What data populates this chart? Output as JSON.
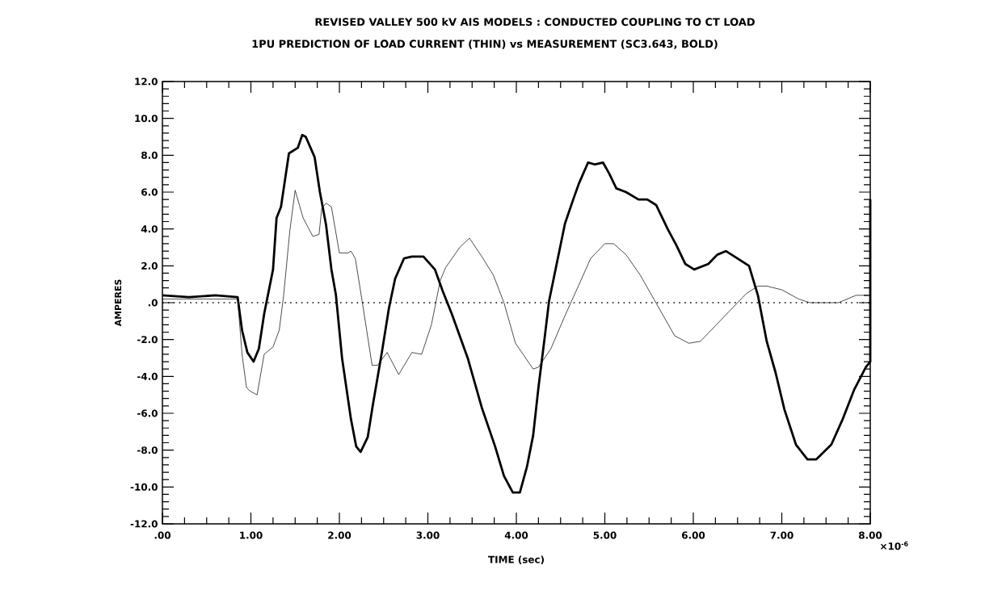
{
  "chart_data": {
    "type": "line",
    "title": "REVISED VALLEY 500 kV AIS MODELS : CONDUCTED COUPLING TO CT LOAD",
    "subtitle": "1PU PREDICTION OF LOAD CURRENT (THIN) vs MEASUREMENT (SC3.643, BOLD)",
    "xlabel": "TIME (sec)",
    "ylabel": "AMPERES",
    "annotations": [
      "×10$^{-6}$"
    ],
    "xlim": [
      0,
      8
    ],
    "ylim": [
      -12,
      12
    ],
    "xticks": [
      {
        "value": 0,
        "label": ".00"
      },
      {
        "value": 1,
        "label": "1.00"
      },
      {
        "value": 2,
        "label": "2.00"
      },
      {
        "value": 3,
        "label": "3.00"
      },
      {
        "value": 4,
        "label": "4.00"
      },
      {
        "value": 5,
        "label": "5.00"
      },
      {
        "value": 6,
        "label": "6.00"
      },
      {
        "value": 7,
        "label": "7.00"
      },
      {
        "value": 8,
        "label": "8.00"
      }
    ],
    "yticks": [
      {
        "value": -12,
        "label": "-12.0"
      },
      {
        "value": -10,
        "label": "-10.0"
      },
      {
        "value": -8,
        "label": "-8.0"
      },
      {
        "value": -6,
        "label": "-6.0"
      },
      {
        "value": -4,
        "label": "-4.0"
      },
      {
        "value": -2,
        "label": "-2.0"
      },
      {
        "value": 0,
        "label": ".0"
      },
      {
        "value": 2,
        "label": "2.0"
      },
      {
        "value": 4,
        "label": "4.0"
      },
      {
        "value": 6,
        "label": "6.0"
      },
      {
        "value": 8,
        "label": "8.0"
      },
      {
        "value": 10,
        "label": "10.0"
      },
      {
        "value": 12,
        "label": "12.0"
      }
    ],
    "ref_lines": [
      {
        "axis": "y",
        "value": 0,
        "line_style": "dotted"
      }
    ],
    "line_style": "solid",
    "series": [
      {
        "color": "#000000",
        "x": [
          0,
          0.85,
          0.9,
          0.95,
          0.99,
          1.07,
          1.15,
          1.25,
          1.32,
          1.37,
          1.44,
          1.5,
          1.59,
          1.7,
          1.77,
          1.8,
          1.85,
          1.91,
          2.0,
          2.1,
          2.13,
          2.18,
          2.26,
          2.37,
          2.43,
          2.54,
          2.67,
          2.82,
          2.93,
          3.04,
          3.14,
          3.2,
          3.36,
          3.47,
          3.61,
          3.74,
          3.86,
          3.99,
          4.19,
          4.25,
          4.39,
          4.55,
          4.71,
          4.84,
          5.0,
          5.1,
          5.24,
          5.4,
          5.53,
          5.66,
          5.79,
          5.95,
          6.08,
          6.24,
          6.4,
          6.6,
          6.73,
          6.83,
          7.0,
          7.19,
          7.32,
          7.64,
          7.84,
          7.97
        ],
        "values": [
          0.2,
          0.2,
          -2.8,
          -4.6,
          -4.8,
          -5.0,
          -2.8,
          -2.4,
          -1.5,
          0.4,
          3.9,
          6.1,
          4.6,
          3.6,
          3.7,
          5.1,
          5.4,
          5.2,
          2.7,
          2.7,
          2.8,
          2.4,
          0,
          -3.4,
          -3.4,
          -2.7,
          -3.9,
          -2.7,
          -2.8,
          -1.2,
          1.2,
          1.9,
          3.0,
          3.5,
          2.5,
          1.5,
          0,
          -2.2,
          -3.6,
          -3.5,
          -2.5,
          -0.7,
          1.0,
          2.4,
          3.2,
          3.2,
          2.6,
          1.5,
          0.4,
          -0.7,
          -1.8,
          -2.2,
          -2.1,
          -1.3,
          -0.5,
          0.5,
          0.9,
          0.9,
          0.7,
          0.2,
          0,
          0,
          0.4,
          0.4
        ]
      },
      {
        "color": "#000000",
        "x": [
          0,
          0.3,
          0.6,
          0.85,
          0.9,
          0.96,
          1.03,
          1.09,
          1.15,
          1.25,
          1.29,
          1.34,
          1.43,
          1.53,
          1.58,
          1.62,
          1.72,
          1.78,
          1.85,
          1.91,
          1.96,
          2.03,
          2.13,
          2.19,
          2.24,
          2.32,
          2.38,
          2.48,
          2.56,
          2.63,
          2.73,
          2.82,
          2.95,
          3.08,
          3.17,
          3.27,
          3.45,
          3.61,
          3.76,
          3.86,
          3.96,
          4.04,
          4.12,
          4.19,
          4.25,
          4.32,
          4.37,
          4.43,
          4.55,
          4.65,
          4.71,
          4.81,
          4.89,
          4.98,
          5.05,
          5.13,
          5.24,
          5.38,
          5.48,
          5.58,
          5.71,
          5.81,
          5.91,
          6.01,
          6.17,
          6.27,
          6.37,
          6.5,
          6.63,
          6.73,
          6.83,
          6.93,
          7.03,
          7.16,
          7.29,
          7.39,
          7.56,
          7.69,
          7.82,
          7.95,
          8.0,
          8.0
        ],
        "values": [
          0.4,
          0.3,
          0.4,
          0.3,
          -1.5,
          -2.7,
          -3.2,
          -2.5,
          -0.6,
          1.8,
          4.6,
          5.2,
          8.1,
          8.4,
          9.1,
          9.0,
          7.9,
          6.0,
          4.2,
          1.8,
          0.45,
          -3.0,
          -6.3,
          -7.8,
          -8.1,
          -7.3,
          -5.5,
          -2.7,
          -0.3,
          1.3,
          2.4,
          2.5,
          2.5,
          1.8,
          0.6,
          -0.6,
          -3.0,
          -5.7,
          -7.8,
          -9.4,
          -10.3,
          -10.3,
          -8.9,
          -7.2,
          -4.6,
          -1.9,
          0.1,
          1.5,
          4.3,
          5.7,
          6.5,
          7.6,
          7.5,
          7.6,
          7.0,
          6.2,
          6.0,
          5.6,
          5.6,
          5.3,
          4.0,
          3.1,
          2.1,
          1.8,
          2.1,
          2.6,
          2.8,
          2.4,
          2.0,
          0.4,
          -2.1,
          -3.8,
          -5.8,
          -7.7,
          -8.5,
          -8.5,
          -7.7,
          -6.3,
          -4.7,
          -3.5,
          -3.2,
          5.6
        ]
      }
    ]
  }
}
